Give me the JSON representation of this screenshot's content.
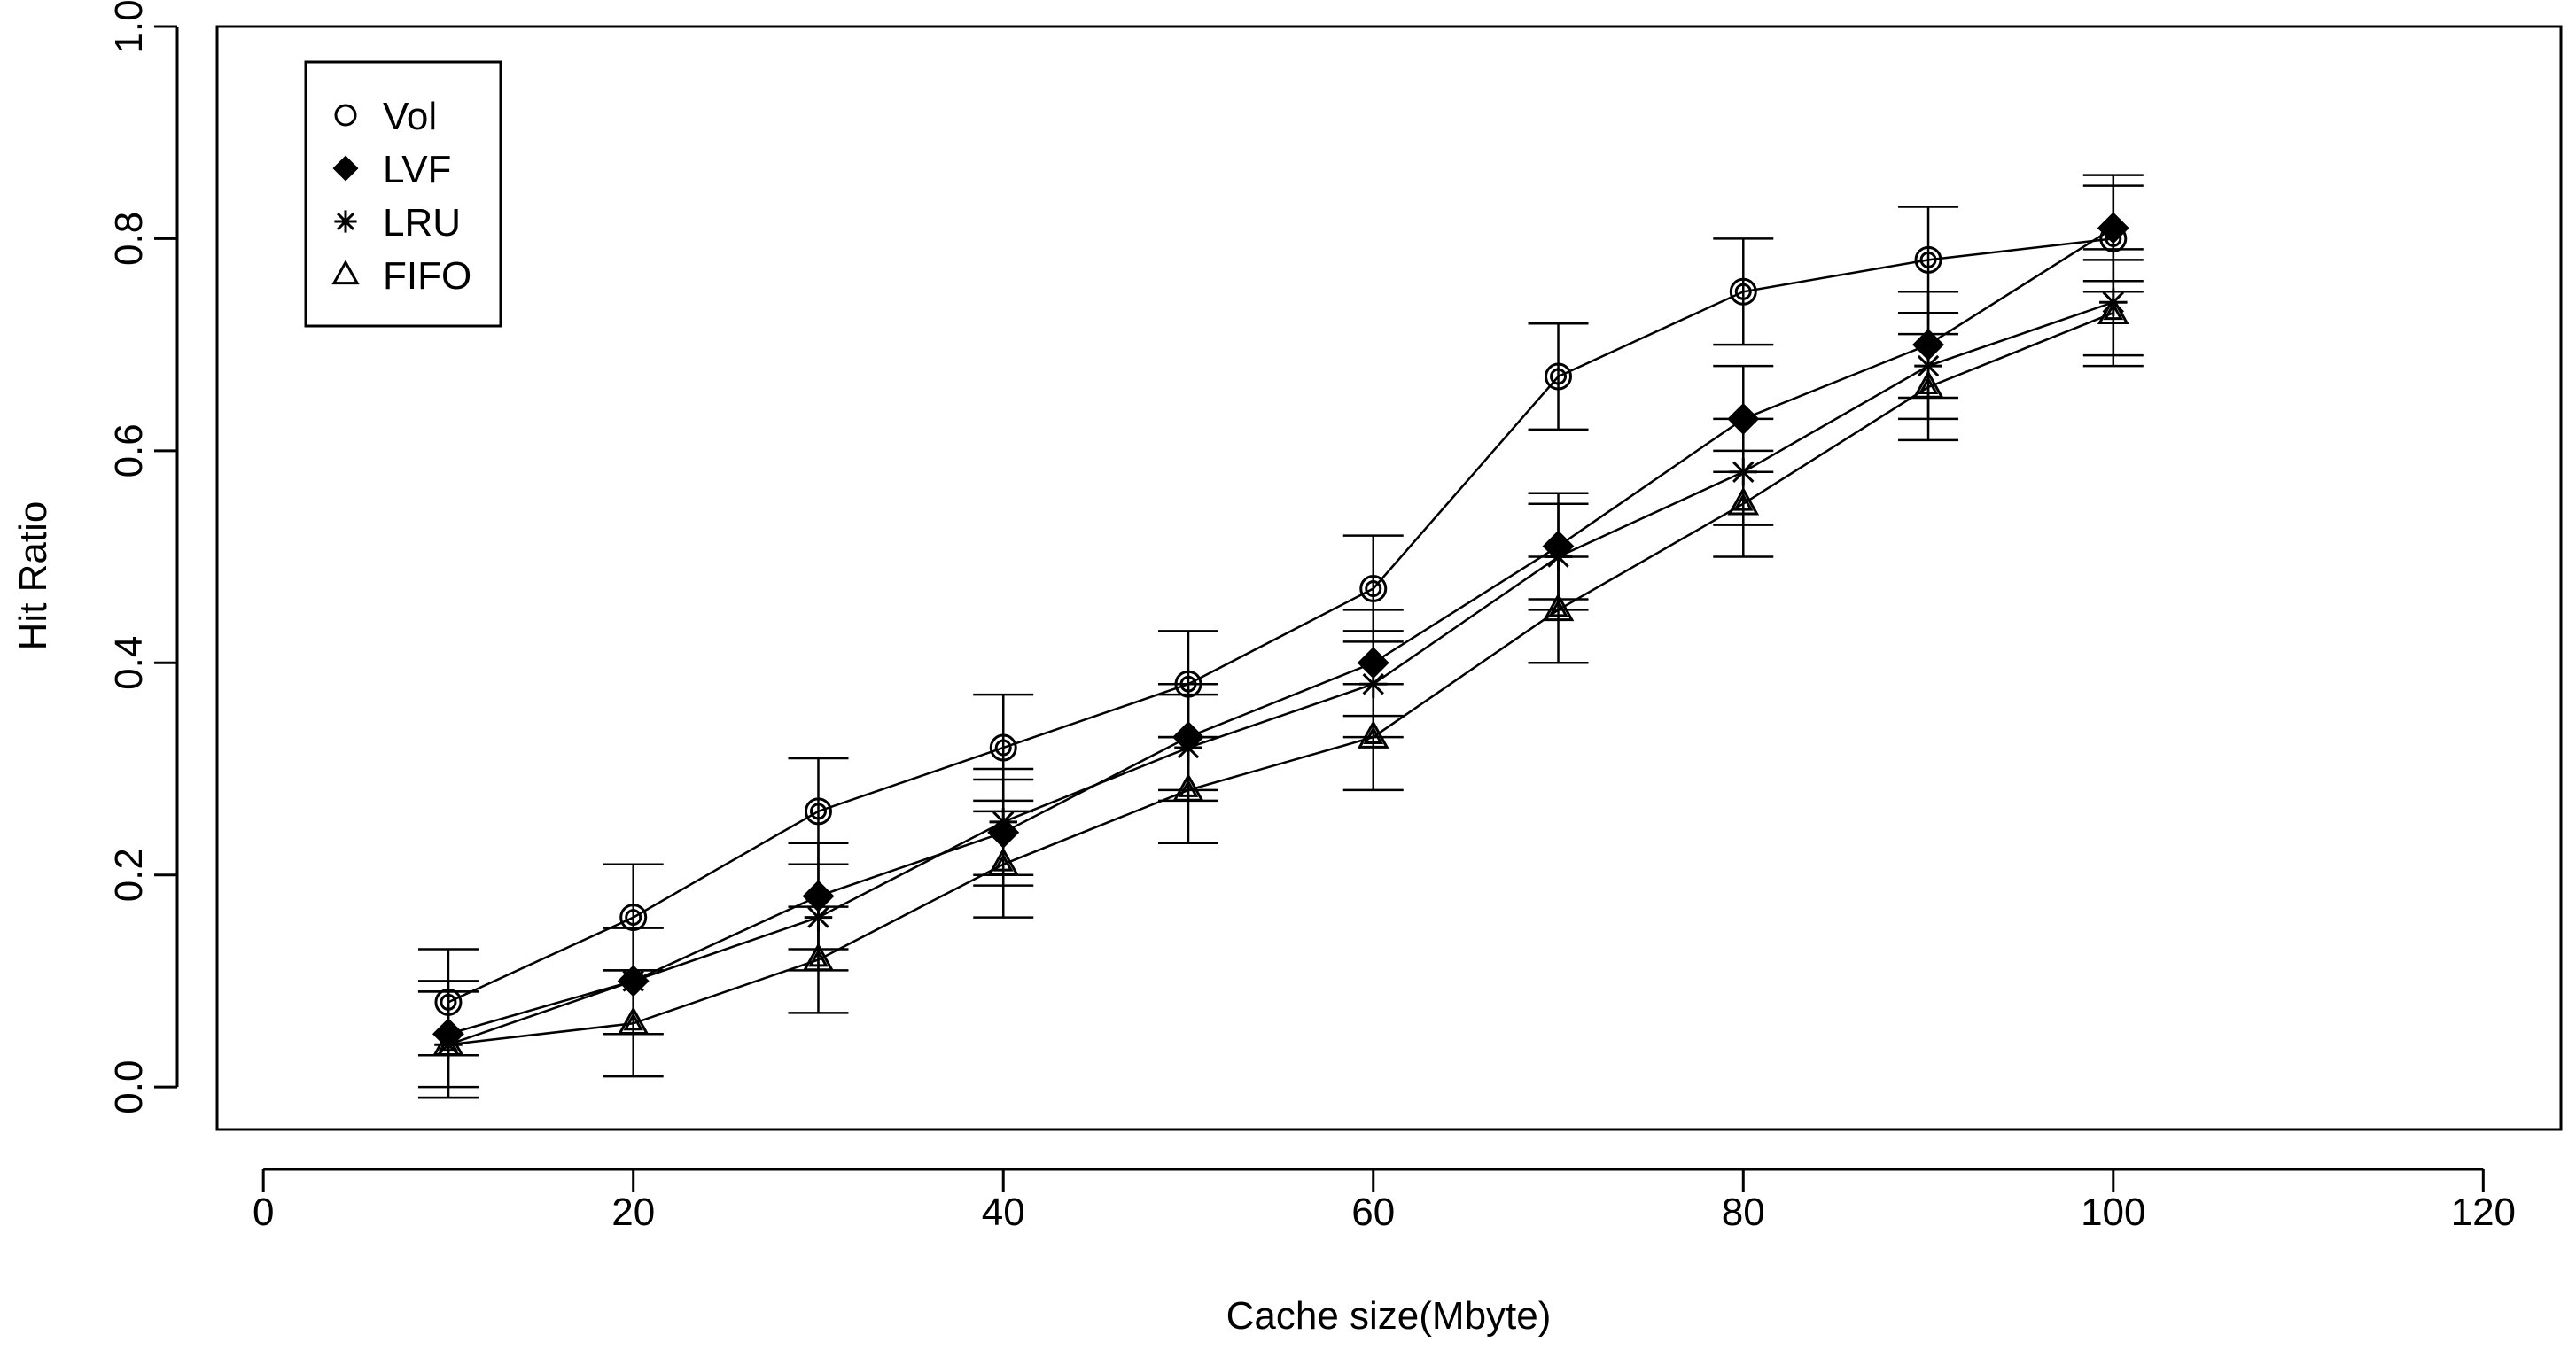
{
  "chart_data": {
    "type": "line",
    "title": "",
    "xlabel": "Cache size(Mbyte)",
    "ylabel": "Hit Ratio",
    "xlim": [
      -2.5,
      124.2
    ],
    "ylim": [
      -0.04,
      1.0
    ],
    "xticks": [
      0,
      20,
      40,
      60,
      80,
      100,
      120
    ],
    "xtick_labels": [
      "0",
      "20",
      "40",
      "60",
      "80",
      "100",
      "120"
    ],
    "yticks": [
      0.0,
      0.2,
      0.4,
      0.6,
      0.8,
      1.0
    ],
    "ytick_labels": [
      "0.0",
      "0.2",
      "0.4",
      "0.6",
      "0.8",
      "1.0"
    ],
    "grid": false,
    "legend_position": "top-left",
    "x": [
      10,
      20,
      30,
      40,
      50,
      60,
      70,
      80,
      90,
      100
    ],
    "series": [
      {
        "name": "Vol",
        "marker": "circle",
        "values": [
          0.08,
          0.16,
          0.26,
          0.32,
          0.38,
          0.47,
          0.67,
          0.75,
          0.78,
          0.8
        ],
        "err": [
          0.05,
          0.05,
          0.05,
          0.05,
          0.05,
          0.05,
          0.05,
          0.05,
          0.05,
          0.05
        ]
      },
      {
        "name": "LVF",
        "marker": "diamond",
        "values": [
          0.05,
          0.1,
          0.18,
          0.24,
          0.33,
          0.4,
          0.51,
          0.63,
          0.7,
          0.81
        ],
        "err": [
          0.05,
          0.05,
          0.05,
          0.05,
          0.05,
          0.05,
          0.05,
          0.05,
          0.05,
          0.05
        ]
      },
      {
        "name": "LRU",
        "marker": "asterisk",
        "values": [
          0.04,
          0.1,
          0.16,
          0.25,
          0.32,
          0.38,
          0.5,
          0.58,
          0.68,
          0.74
        ],
        "err": [
          0.05,
          0.05,
          0.05,
          0.05,
          0.05,
          0.05,
          0.05,
          0.05,
          0.05,
          0.05
        ]
      },
      {
        "name": "FIFO",
        "marker": "triangle",
        "values": [
          0.04,
          0.06,
          0.12,
          0.21,
          0.28,
          0.33,
          0.45,
          0.55,
          0.66,
          0.73
        ],
        "err": [
          0.05,
          0.05,
          0.05,
          0.05,
          0.05,
          0.05,
          0.05,
          0.05,
          0.05,
          0.05
        ]
      }
    ]
  }
}
